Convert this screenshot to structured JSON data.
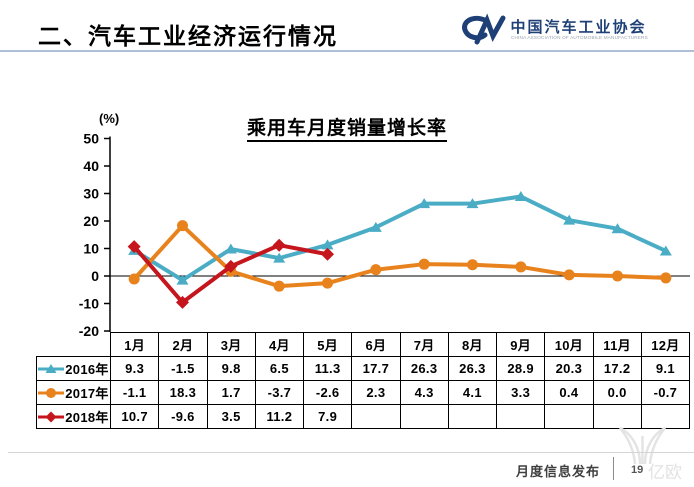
{
  "header": {
    "title": "二、汽车工业经济运行情况",
    "logo": {
      "monogram": "CM",
      "org_name": "中国汽车工业协会",
      "org_name_en": "CHINA ASSOCIATION OF AUTOMOBILE MANUFACTURERS",
      "brand_color": "#1F4077"
    }
  },
  "chart_data": {
    "type": "line",
    "title": "乘用车月度销量增长率",
    "ylabel": "(%)",
    "ylim": [
      -20,
      50
    ],
    "yticks": [
      50,
      40,
      30,
      20,
      10,
      0,
      -10,
      -20
    ],
    "grid": false,
    "legend_position": "table-left",
    "categories": [
      "1月",
      "2月",
      "3月",
      "4月",
      "5月",
      "6月",
      "7月",
      "8月",
      "9月",
      "10月",
      "11月",
      "12月"
    ],
    "series": [
      {
        "name": "2016年",
        "color": "#4AACC5",
        "marker": "triangle",
        "values": [
          9.3,
          -1.5,
          9.8,
          6.5,
          11.3,
          17.7,
          26.3,
          26.3,
          28.9,
          20.3,
          17.2,
          9.1
        ]
      },
      {
        "name": "2017年",
        "color": "#E8821D",
        "marker": "circle",
        "values": [
          -1.1,
          18.3,
          1.7,
          -3.7,
          -2.6,
          2.3,
          4.3,
          4.1,
          3.3,
          0.4,
          0.0,
          -0.7
        ]
      },
      {
        "name": "2018年",
        "color": "#C5161D",
        "marker": "diamond",
        "values": [
          10.7,
          -9.6,
          3.5,
          11.2,
          7.9,
          null,
          null,
          null,
          null,
          null,
          null,
          null
        ]
      }
    ]
  },
  "footer": {
    "label": "月度信息发布",
    "page_number": "19",
    "watermark_text": "亿欧"
  }
}
